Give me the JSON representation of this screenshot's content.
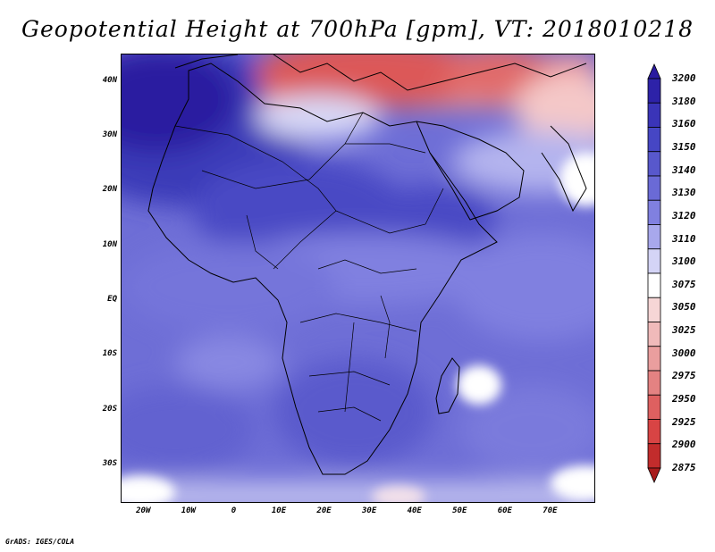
{
  "title": "Geopotential Height at 700hPa [gpm], VT: 2018010218",
  "footer": "GrADS: IGES/COLA",
  "map": {
    "variable": "Geopotential Height",
    "level": "700hPa",
    "units": "gpm",
    "valid_time": "2018010218",
    "lon_range": [
      -25,
      80
    ],
    "lat_range": [
      -37,
      45
    ],
    "lat_ticks": [
      {
        "value": 40,
        "label": "40N"
      },
      {
        "value": 30,
        "label": "30N"
      },
      {
        "value": 20,
        "label": "20N"
      },
      {
        "value": 10,
        "label": "10N"
      },
      {
        "value": 0,
        "label": "EQ"
      },
      {
        "value": -10,
        "label": "10S"
      },
      {
        "value": -20,
        "label": "20S"
      },
      {
        "value": -30,
        "label": "30S"
      }
    ],
    "lon_ticks": [
      {
        "value": -20,
        "label": "20W"
      },
      {
        "value": -10,
        "label": "10W"
      },
      {
        "value": 0,
        "label": "0"
      },
      {
        "value": 10,
        "label": "10E"
      },
      {
        "value": 20,
        "label": "20E"
      },
      {
        "value": 30,
        "label": "30E"
      },
      {
        "value": 40,
        "label": "40E"
      },
      {
        "value": 50,
        "label": "50E"
      },
      {
        "value": 60,
        "label": "60E"
      },
      {
        "value": 70,
        "label": "70E"
      }
    ]
  },
  "colorbar": {
    "levels": [
      {
        "label": "3200",
        "color": "#2a1aa0"
      },
      {
        "label": "3180",
        "color": "#2d22a8"
      },
      {
        "label": "3160",
        "color": "#3a34b8"
      },
      {
        "label": "3150",
        "color": "#4646c4"
      },
      {
        "label": "3140",
        "color": "#5858cc"
      },
      {
        "label": "3130",
        "color": "#6a6ad6"
      },
      {
        "label": "3120",
        "color": "#8080e0"
      },
      {
        "label": "3110",
        "color": "#a8a8ec"
      },
      {
        "label": "3100",
        "color": "#d4d4f6"
      },
      {
        "label": "3075",
        "color": "#ffffff"
      },
      {
        "label": "3050",
        "color": "#f6d6d6"
      },
      {
        "label": "3025",
        "color": "#f0baba"
      },
      {
        "label": "3000",
        "color": "#ea9e9e"
      },
      {
        "label": "2975",
        "color": "#e48282"
      },
      {
        "label": "2950",
        "color": "#de6060"
      },
      {
        "label": "2925",
        "color": "#d84444"
      },
      {
        "label": "2900",
        "color": "#c22c2c"
      },
      {
        "label": "2875",
        "color": "#a81c1c"
      }
    ]
  }
}
